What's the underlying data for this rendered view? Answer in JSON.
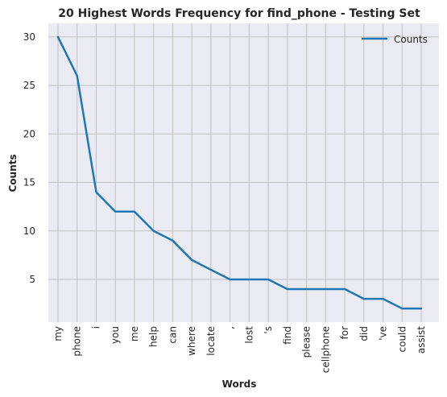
{
  "chart_data": {
    "type": "line",
    "title": "20 Highest Words Frequency for find_phone - Testing Set",
    "xlabel": "Words",
    "ylabel": "Counts",
    "categories": [
      "my",
      "phone",
      "i",
      "you",
      "me",
      "help",
      "can",
      "where",
      "locate",
      ",",
      "lost",
      "'s",
      "find",
      "please",
      "cellphone",
      "for",
      "did",
      "'ve",
      "could",
      "assist"
    ],
    "series": [
      {
        "name": "Counts",
        "values": [
          30,
          26,
          14,
          12,
          12,
          10,
          9,
          7,
          6,
          5,
          5,
          5,
          4,
          4,
          4,
          4,
          3,
          3,
          2,
          2
        ],
        "color": "#1f77b4"
      }
    ],
    "ylim": [
      0.6,
      31.4
    ],
    "yticks": [
      5,
      10,
      15,
      20,
      25,
      30
    ],
    "grid": true,
    "legend_position": "top-right",
    "background": "#eaeaf2",
    "grid_color": "#c0c0c0"
  }
}
